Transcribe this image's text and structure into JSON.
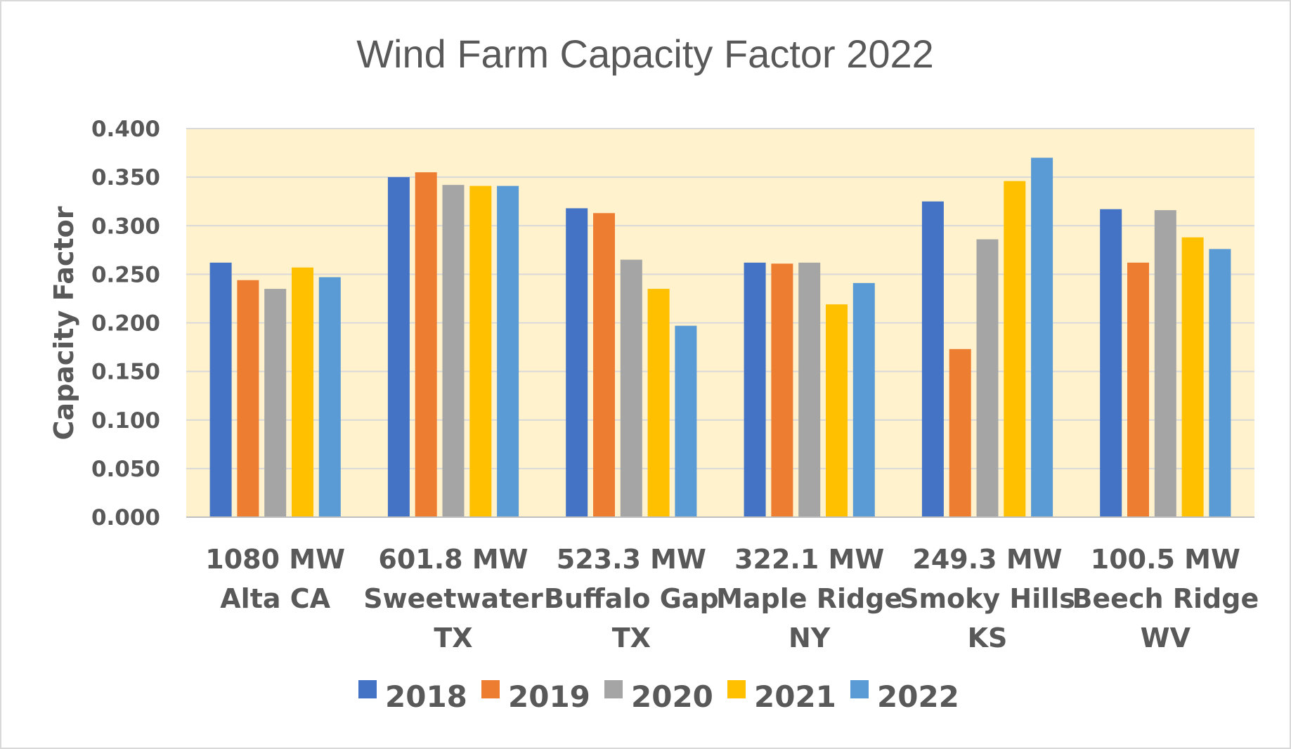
{
  "chart_data": {
    "type": "bar",
    "title": "Wind Farm Capacity Factor 2022",
    "xlabel": "",
    "ylabel": "Capacity Factor",
    "ylim": [
      0,
      0.4
    ],
    "yticks": [
      "0.000",
      "0.050",
      "0.100",
      "0.150",
      "0.200",
      "0.250",
      "0.300",
      "0.350",
      "0.400"
    ],
    "grid": true,
    "legend_position": "bottom",
    "plot_background": "#fff2cc",
    "categories": [
      [
        "1080 MW",
        "Alta CA"
      ],
      [
        "601.8 MW",
        "Sweetwater",
        "TX"
      ],
      [
        "523.3 MW",
        "Buffalo Gap",
        "TX"
      ],
      [
        "322.1 MW",
        "Maple Ridge",
        "NY"
      ],
      [
        "249.3 MW",
        "Smoky Hills",
        "KS"
      ],
      [
        "100.5 MW",
        "Beech Ridge",
        "WV"
      ]
    ],
    "series": [
      {
        "name": "2018",
        "color": "#4472c4",
        "values": [
          0.262,
          0.35,
          0.318,
          0.262,
          0.325,
          0.317
        ]
      },
      {
        "name": "2019",
        "color": "#ed7d31",
        "values": [
          0.244,
          0.355,
          0.313,
          0.261,
          0.173,
          0.262
        ]
      },
      {
        "name": "2020",
        "color": "#a5a5a5",
        "values": [
          0.235,
          0.342,
          0.265,
          0.262,
          0.286,
          0.316
        ]
      },
      {
        "name": "2021",
        "color": "#ffc000",
        "values": [
          0.257,
          0.341,
          0.235,
          0.219,
          0.346,
          0.288
        ]
      },
      {
        "name": "2022",
        "color": "#5b9bd5",
        "values": [
          0.247,
          0.341,
          0.197,
          0.241,
          0.37,
          0.276
        ]
      }
    ]
  }
}
